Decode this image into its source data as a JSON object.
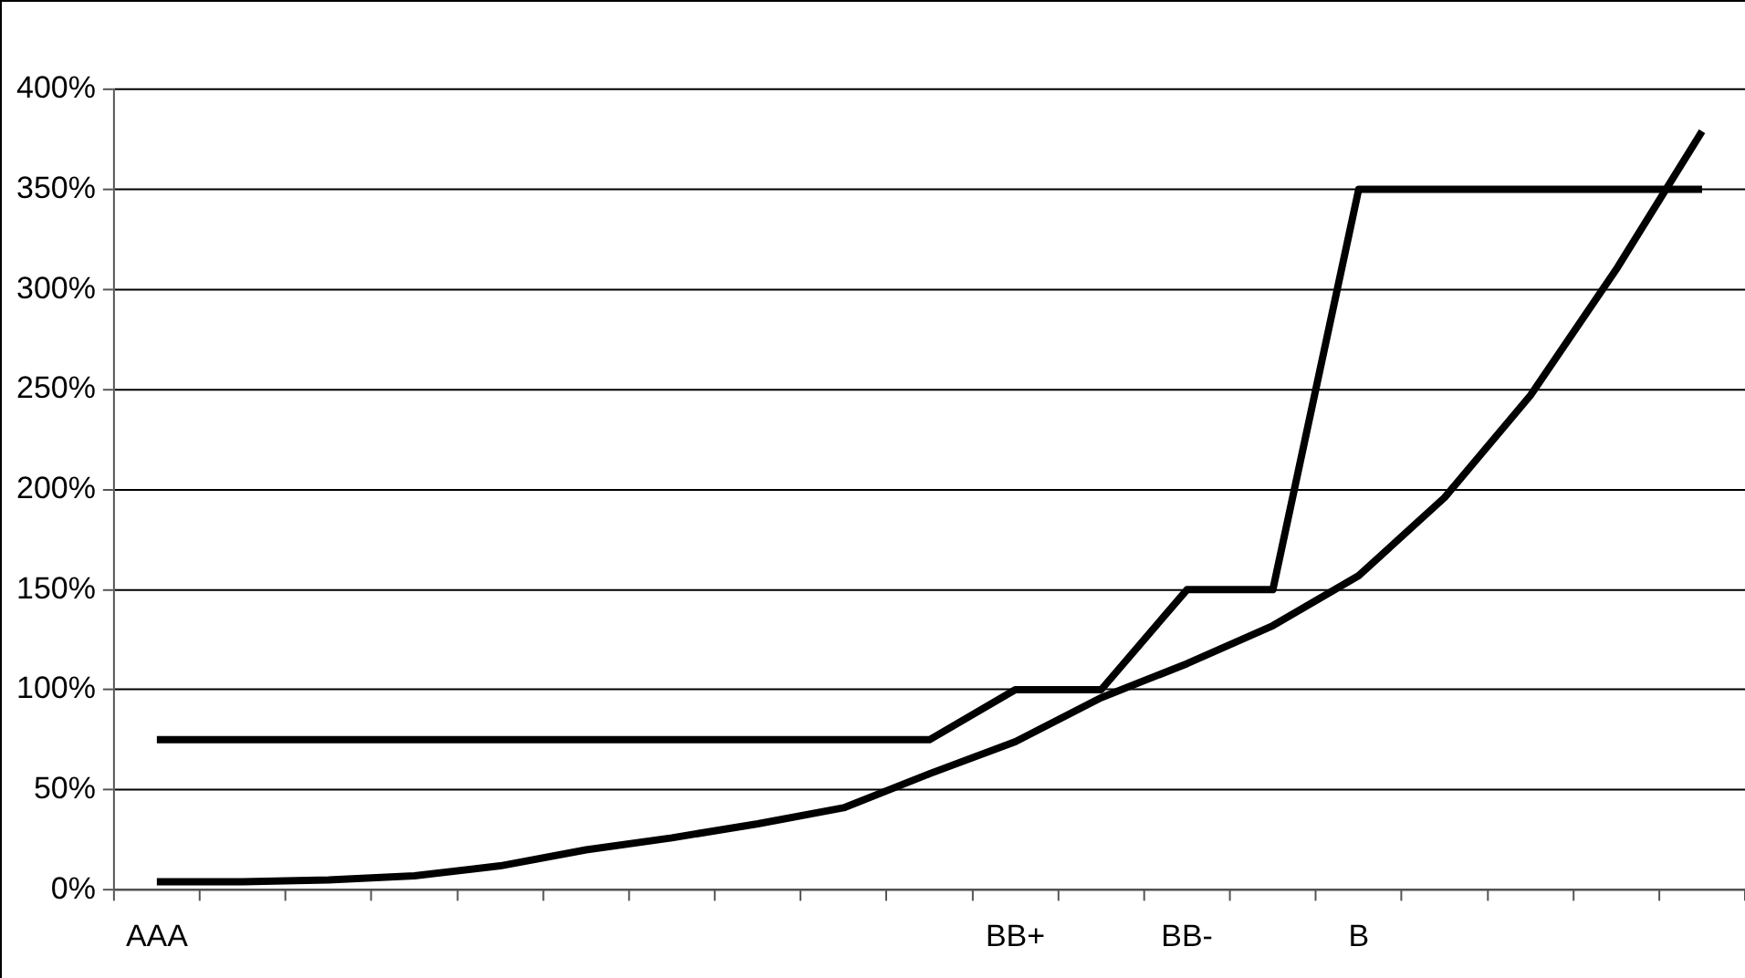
{
  "chart_data": {
    "type": "line",
    "categories": [
      "AAA",
      null,
      null,
      null,
      null,
      null,
      null,
      null,
      null,
      null,
      "BB+",
      null,
      "BB-",
      null,
      "B",
      null,
      null,
      null,
      null
    ],
    "series": [
      {
        "color": "#000000",
        "values": [
          75,
          75,
          75,
          75,
          75,
          75,
          75,
          75,
          75,
          75,
          100,
          100,
          150,
          150,
          350,
          350,
          350,
          350,
          350
        ]
      },
      {
        "color": "#000000",
        "values": [
          4,
          4,
          5,
          7,
          12,
          20,
          26,
          33,
          41,
          58,
          74,
          96,
          113,
          132,
          157,
          196,
          247,
          310,
          379
        ]
      }
    ],
    "ylim": [
      0,
      400
    ],
    "yticks": [
      {
        "value": 0,
        "label": "0%"
      },
      {
        "value": 50,
        "label": "50%"
      },
      {
        "value": 100,
        "label": "100%"
      },
      {
        "value": 150,
        "label": "150%"
      },
      {
        "value": 200,
        "label": "200%"
      },
      {
        "value": 250,
        "label": "250%"
      },
      {
        "value": 300,
        "label": "300%"
      },
      {
        "value": 350,
        "label": "350%"
      },
      {
        "value": 400,
        "label": "400%"
      }
    ],
    "grid": "y",
    "legend": false,
    "marker": "none",
    "line_style": "solid"
  }
}
